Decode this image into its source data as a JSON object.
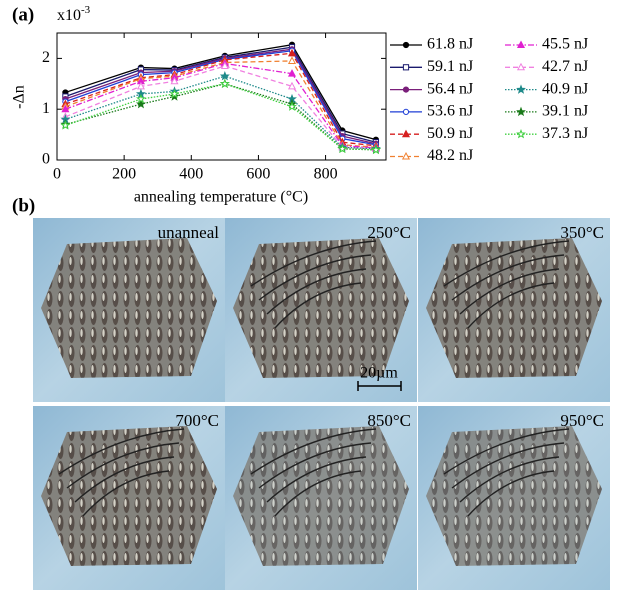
{
  "panel_labels": [
    "(a)",
    "(b)"
  ],
  "chart_data": {
    "type": "line",
    "y_label": "-Δn",
    "x_label": "annealing temperature (°C)",
    "y_multiplier": "x10",
    "y_multiplier_exponent": "-3",
    "x": [
      25,
      250,
      350,
      500,
      700,
      850,
      950
    ],
    "xlim": [
      0,
      980
    ],
    "xticks": [
      0,
      200,
      400,
      600,
      800
    ],
    "ylim": [
      0,
      2.5
    ],
    "yticks": [
      0,
      1,
      2
    ],
    "legend": "right",
    "series": [
      {
        "name": "61.8 nJ",
        "color": "#000000",
        "dash": "solid",
        "marker": "circle",
        "values": [
          1.33,
          1.82,
          1.8,
          2.05,
          2.27,
          0.58,
          0.4
        ]
      },
      {
        "name": "59.1 nJ",
        "color": "#1a1a6e",
        "dash": "solid",
        "marker": "square-open",
        "values": [
          1.25,
          1.78,
          1.77,
          2.02,
          2.22,
          0.52,
          0.35
        ]
      },
      {
        "name": "56.4 nJ",
        "color": "#7a1f7a",
        "dash": "solid",
        "marker": "circle",
        "values": [
          1.2,
          1.72,
          1.75,
          2.0,
          2.18,
          0.47,
          0.32
        ]
      },
      {
        "name": "53.6 nJ",
        "color": "#1f3fd6",
        "dash": "solid",
        "marker": "circle-open",
        "values": [
          1.15,
          1.68,
          1.72,
          1.98,
          2.15,
          0.42,
          0.3
        ]
      },
      {
        "name": "50.9 nJ",
        "color": "#d61f1f",
        "dash": "dashed",
        "marker": "triangle",
        "values": [
          1.1,
          1.62,
          1.68,
          1.97,
          2.1,
          0.35,
          0.28
        ]
      },
      {
        "name": "48.2 nJ",
        "color": "#f08030",
        "dash": "dashed",
        "marker": "triangle-open",
        "values": [
          1.05,
          1.6,
          1.65,
          1.92,
          1.95,
          0.3,
          0.25
        ]
      },
      {
        "name": "45.5 nJ",
        "color": "#e020d0",
        "dash": "dashdot",
        "marker": "triangle",
        "values": [
          1.0,
          1.55,
          1.62,
          1.9,
          1.7,
          0.28,
          0.24
        ]
      },
      {
        "name": "42.7 nJ",
        "color": "#f080e0",
        "dash": "dashed",
        "marker": "triangle-open",
        "values": [
          0.85,
          1.45,
          1.55,
          1.85,
          1.45,
          0.25,
          0.22
        ]
      },
      {
        "name": "40.9 nJ",
        "color": "#1f8a8a",
        "dash": "dotted",
        "marker": "star",
        "values": [
          0.8,
          1.3,
          1.35,
          1.65,
          1.2,
          0.25,
          0.22
        ]
      },
      {
        "name": "39.1 nJ",
        "color": "#1a7a1a",
        "dash": "dotted",
        "marker": "star",
        "values": [
          0.7,
          1.1,
          1.25,
          1.5,
          1.1,
          0.22,
          0.2
        ]
      },
      {
        "name": "37.3 nJ",
        "color": "#40d040",
        "dash": "dotted",
        "marker": "star-open",
        "values": [
          0.68,
          1.2,
          1.3,
          1.5,
          1.05,
          0.22,
          0.2
        ]
      }
    ]
  },
  "images": [
    {
      "label": "unanneal"
    },
    {
      "label": "250°C"
    },
    {
      "label": "350°C"
    },
    {
      "label": "700°C"
    },
    {
      "label": "850°C"
    },
    {
      "label": "950°C"
    }
  ],
  "scale_bar": "20µm"
}
